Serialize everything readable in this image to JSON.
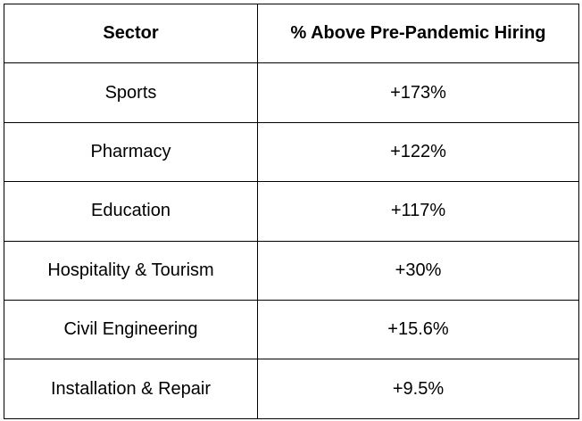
{
  "table": {
    "headers": [
      "Sector",
      "% Above Pre-Pandemic Hiring"
    ],
    "rows": [
      {
        "sector": "Sports",
        "pct": "+173%"
      },
      {
        "sector": "Pharmacy",
        "pct": "+122%"
      },
      {
        "sector": "Education",
        "pct": "+117%"
      },
      {
        "sector": "Hospitality & Tourism",
        "pct": "+30%"
      },
      {
        "sector": "Civil Engineering",
        "pct": "+15.6%"
      },
      {
        "sector": "Installation & Repair",
        "pct": "+9.5%"
      }
    ]
  }
}
